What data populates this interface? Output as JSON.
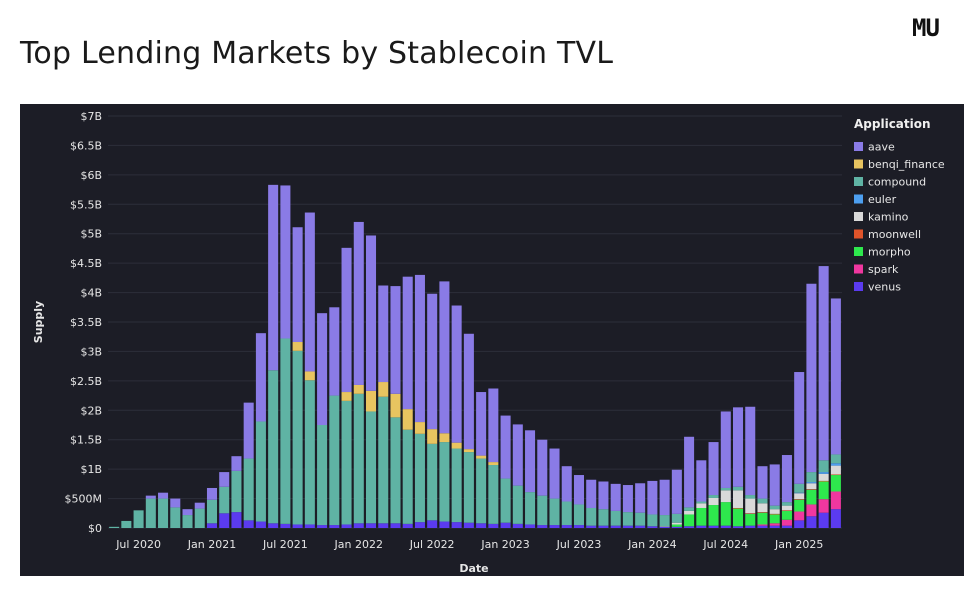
{
  "header": {
    "title": "Top Lending Markets by Stablecoin TVL",
    "logo_text": "MU"
  },
  "chart_data": {
    "type": "bar",
    "stacked": true,
    "title": "Top Lending Markets by Stablecoin TVL",
    "xlabel": "Date",
    "ylabel": "Supply",
    "ylim": [
      0,
      7000000000
    ],
    "y_ticks": [
      {
        "value": 0,
        "label": "$0"
      },
      {
        "value": 500000000,
        "label": "$500M"
      },
      {
        "value": 1000000000,
        "label": "$1B"
      },
      {
        "value": 1500000000,
        "label": "$1.5B"
      },
      {
        "value": 2000000000,
        "label": "$2B"
      },
      {
        "value": 2500000000,
        "label": "$2.5B"
      },
      {
        "value": 3000000000,
        "label": "$3B"
      },
      {
        "value": 3500000000,
        "label": "$3.5B"
      },
      {
        "value": 4000000000,
        "label": "$4B"
      },
      {
        "value": 4500000000,
        "label": "$4.5B"
      },
      {
        "value": 5000000000,
        "label": "$5B"
      },
      {
        "value": 5500000000,
        "label": "$5.5B"
      },
      {
        "value": 6000000000,
        "label": "$6B"
      },
      {
        "value": 6500000000,
        "label": "$6.5B"
      },
      {
        "value": 7000000000,
        "label": "$7B"
      }
    ],
    "x_ticks": [
      {
        "category": "2020-07",
        "label": "Jul 2020"
      },
      {
        "category": "2021-01",
        "label": "Jan 2021"
      },
      {
        "category": "2021-07",
        "label": "Jul 2021"
      },
      {
        "category": "2022-01",
        "label": "Jan 2022"
      },
      {
        "category": "2022-07",
        "label": "Jul 2022"
      },
      {
        "category": "2023-01",
        "label": "Jan 2023"
      },
      {
        "category": "2023-07",
        "label": "Jul 2023"
      },
      {
        "category": "2024-01",
        "label": "Jan 2024"
      },
      {
        "category": "2024-07",
        "label": "Jul 2024"
      },
      {
        "category": "2025-01",
        "label": "Jan 2025"
      }
    ],
    "legend_title": "Application",
    "legend_position": "right",
    "series_units": "USD millions",
    "categories": [
      "2020-05",
      "2020-06",
      "2020-07",
      "2020-08",
      "2020-09",
      "2020-10",
      "2020-11",
      "2020-12",
      "2021-01",
      "2021-02",
      "2021-03",
      "2021-04",
      "2021-05",
      "2021-06",
      "2021-07",
      "2021-08",
      "2021-09",
      "2021-10",
      "2021-11",
      "2021-12",
      "2022-01",
      "2022-02",
      "2022-03",
      "2022-04",
      "2022-05",
      "2022-06",
      "2022-07",
      "2022-08",
      "2022-09",
      "2022-10",
      "2022-11",
      "2022-12",
      "2023-01",
      "2023-02",
      "2023-03",
      "2023-04",
      "2023-05",
      "2023-06",
      "2023-07",
      "2023-08",
      "2023-09",
      "2023-10",
      "2023-11",
      "2023-12",
      "2024-01",
      "2024-02",
      "2024-03",
      "2024-04",
      "2024-05",
      "2024-06",
      "2024-07",
      "2024-08",
      "2024-09",
      "2024-10",
      "2024-11",
      "2024-12",
      "2025-01",
      "2025-02",
      "2025-03",
      "2025-04"
    ],
    "series": [
      {
        "name": "venus",
        "color": "#5b3bf0",
        "values": [
          0,
          0,
          0,
          0,
          0,
          0,
          0,
          0,
          80,
          250,
          270,
          130,
          110,
          80,
          70,
          60,
          60,
          50,
          50,
          60,
          80,
          80,
          80,
          80,
          70,
          100,
          130,
          110,
          100,
          90,
          80,
          70,
          90,
          70,
          60,
          50,
          50,
          50,
          50,
          40,
          40,
          40,
          40,
          40,
          30,
          20,
          20,
          30,
          40,
          40,
          40,
          30,
          40,
          40,
          40,
          40,
          130,
          200,
          260,
          320
        ]
      },
      {
        "name": "spark",
        "color": "#f0379f",
        "values": [
          0,
          0,
          0,
          0,
          0,
          0,
          0,
          0,
          0,
          0,
          0,
          0,
          0,
          0,
          0,
          0,
          0,
          0,
          0,
          0,
          0,
          0,
          0,
          0,
          0,
          0,
          0,
          0,
          0,
          0,
          0,
          0,
          0,
          0,
          0,
          0,
          0,
          0,
          0,
          0,
          0,
          0,
          0,
          0,
          0,
          0,
          0,
          0,
          0,
          0,
          0,
          0,
          0,
          20,
          40,
          100,
          150,
          200,
          230,
          300
        ]
      },
      {
        "name": "morpho",
        "color": "#2ee84d",
        "values": [
          0,
          0,
          0,
          0,
          0,
          0,
          0,
          0,
          0,
          0,
          0,
          0,
          0,
          0,
          0,
          0,
          0,
          0,
          0,
          0,
          0,
          0,
          0,
          0,
          0,
          0,
          0,
          0,
          0,
          0,
          0,
          0,
          0,
          0,
          0,
          0,
          0,
          0,
          0,
          0,
          0,
          0,
          0,
          0,
          0,
          0,
          40,
          200,
          300,
          350,
          400,
          300,
          200,
          200,
          150,
          150,
          200,
          250,
          300,
          280
        ]
      },
      {
        "name": "moonwell",
        "color": "#e0542a",
        "values": [
          0,
          0,
          0,
          0,
          0,
          0,
          0,
          0,
          0,
          0,
          0,
          0,
          0,
          0,
          0,
          0,
          0,
          0,
          0,
          0,
          0,
          0,
          0,
          0,
          0,
          0,
          0,
          0,
          0,
          0,
          0,
          0,
          0,
          0,
          0,
          0,
          0,
          0,
          0,
          0,
          0,
          0,
          0,
          0,
          0,
          0,
          0,
          0,
          0,
          0,
          0,
          10,
          10,
          10,
          10,
          10,
          10,
          10,
          10,
          10
        ]
      },
      {
        "name": "kamino",
        "color": "#d9d9d9",
        "values": [
          0,
          0,
          0,
          0,
          0,
          0,
          0,
          0,
          0,
          0,
          0,
          0,
          0,
          0,
          0,
          0,
          0,
          0,
          0,
          0,
          0,
          0,
          0,
          0,
          0,
          0,
          0,
          0,
          0,
          0,
          0,
          0,
          0,
          0,
          0,
          0,
          0,
          0,
          0,
          0,
          0,
          0,
          0,
          0,
          0,
          10,
          30,
          60,
          80,
          120,
          200,
          300,
          250,
          150,
          80,
          80,
          100,
          100,
          120,
          150
        ]
      },
      {
        "name": "euler",
        "color": "#4d9ff0",
        "values": [
          0,
          0,
          0,
          0,
          0,
          0,
          0,
          0,
          0,
          0,
          0,
          0,
          0,
          0,
          0,
          0,
          0,
          0,
          0,
          0,
          0,
          0,
          0,
          0,
          0,
          0,
          0,
          0,
          0,
          0,
          0,
          0,
          0,
          0,
          0,
          0,
          0,
          0,
          0,
          0,
          0,
          0,
          0,
          0,
          0,
          0,
          0,
          0,
          0,
          0,
          0,
          0,
          0,
          0,
          0,
          0,
          10,
          20,
          30,
          40
        ]
      },
      {
        "name": "compound",
        "color": "#5fb3a4",
        "values": [
          20,
          120,
          300,
          500,
          500,
          350,
          220,
          330,
          400,
          450,
          700,
          1050,
          1700,
          2600,
          3150,
          2950,
          2450,
          1700,
          2200,
          2100,
          2200,
          1900,
          2150,
          1800,
          1600,
          1500,
          1300,
          1350,
          1250,
          1200,
          1100,
          1000,
          750,
          650,
          550,
          500,
          450,
          400,
          350,
          300,
          280,
          250,
          230,
          220,
          200,
          190,
          150,
          60,
          30,
          50,
          40,
          60,
          60,
          80,
          60,
          60,
          150,
          170,
          200,
          150
        ]
      },
      {
        "name": "benqi_finance",
        "color": "#e8c460",
        "values": [
          0,
          0,
          0,
          0,
          0,
          0,
          0,
          0,
          0,
          0,
          0,
          0,
          0,
          0,
          0,
          150,
          150,
          0,
          0,
          150,
          150,
          350,
          250,
          400,
          350,
          200,
          250,
          150,
          100,
          50,
          50,
          50,
          0,
          0,
          0,
          0,
          0,
          0,
          0,
          0,
          0,
          0,
          0,
          0,
          0,
          0,
          0,
          0,
          0,
          0,
          0,
          0,
          0,
          0,
          0,
          0,
          0,
          0,
          0,
          0
        ]
      },
      {
        "name": "aave",
        "color": "#8a7be6",
        "values": [
          0,
          0,
          0,
          50,
          100,
          150,
          100,
          100,
          200,
          250,
          250,
          950,
          1500,
          3150,
          2600,
          1950,
          2700,
          1900,
          1500,
          2450,
          2770,
          2640,
          1640,
          1830,
          2250,
          2500,
          2300,
          2580,
          2330,
          1960,
          1080,
          1250,
          1070,
          1040,
          1050,
          950,
          850,
          600,
          500,
          480,
          470,
          460,
          460,
          500,
          570,
          600,
          750,
          1200,
          700,
          900,
          1300,
          1350,
          1500,
          550,
          700,
          800,
          1900,
          3200,
          3300,
          2650
        ]
      }
    ]
  }
}
